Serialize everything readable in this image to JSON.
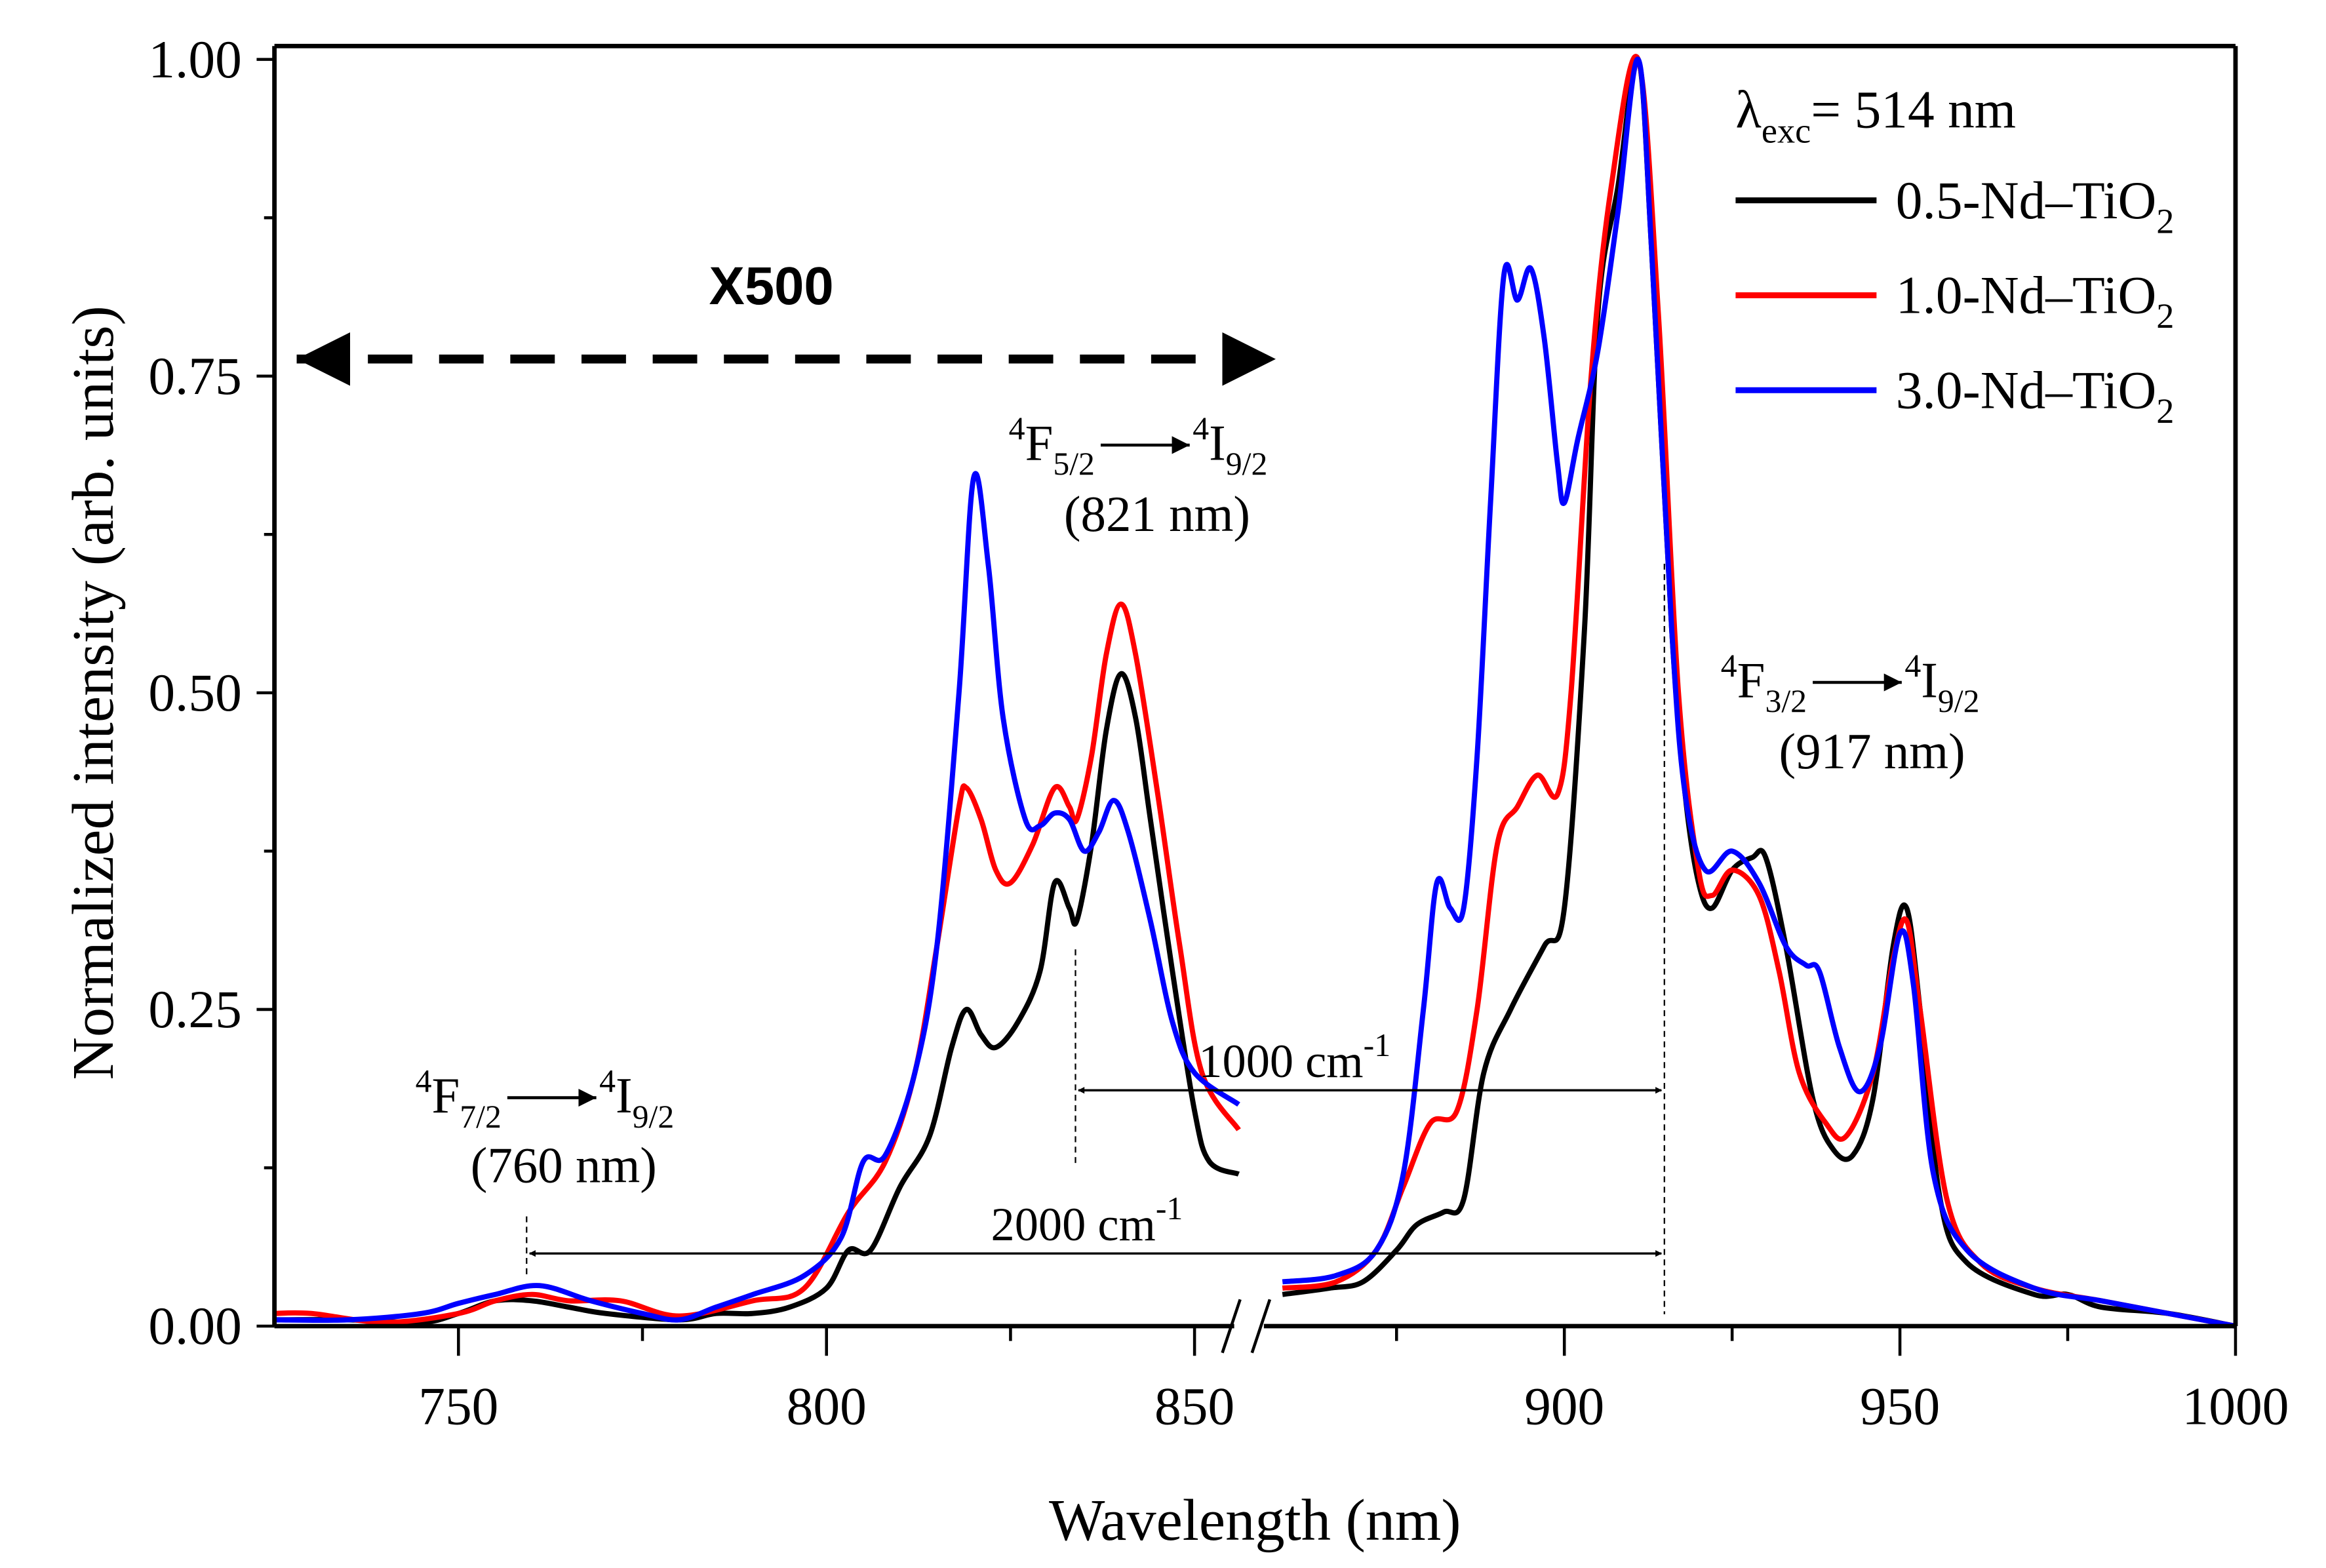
{
  "chart_data": {
    "type": "line",
    "xlabel": "Wavelength (nm)",
    "ylabel": "Normalized intensity (arb. units)",
    "xlim": [
      725,
      1000
    ],
    "x_break": [
      856,
      858
    ],
    "ylim": [
      0,
      1
    ],
    "xticks": [
      "750",
      "800",
      "850",
      "900",
      "950",
      "1000"
    ],
    "yticks": [
      "0.00",
      "0.25",
      "0.50",
      "0.75",
      "1.00"
    ],
    "legend": {
      "title_main": "λ",
      "title_sub": "exc",
      "title_rest": "= 514 nm",
      "placement": "top-right"
    },
    "series": [
      {
        "name": "0.5-Nd–TiO",
        "name_sub": "2",
        "color": "#000000",
        "left": [
          [
            725,
            0.005
          ],
          [
            735,
            0.005
          ],
          [
            745,
            0.003
          ],
          [
            750,
            0.01
          ],
          [
            755,
            0.02
          ],
          [
            760,
            0.02
          ],
          [
            765,
            0.015
          ],
          [
            770,
            0.01
          ],
          [
            780,
            0.005
          ],
          [
            785,
            0.01
          ],
          [
            790,
            0.01
          ],
          [
            795,
            0.015
          ],
          [
            800,
            0.03
          ],
          [
            803,
            0.06
          ],
          [
            806,
            0.06
          ],
          [
            810,
            0.11
          ],
          [
            814,
            0.15
          ],
          [
            817,
            0.22
          ],
          [
            819,
            0.25
          ],
          [
            821,
            0.23
          ],
          [
            823,
            0.22
          ],
          [
            826,
            0.24
          ],
          [
            829,
            0.28
          ],
          [
            831,
            0.35
          ],
          [
            833,
            0.33
          ],
          [
            834,
            0.32
          ],
          [
            836,
            0.38
          ],
          [
            838,
            0.47
          ],
          [
            840,
            0.515
          ],
          [
            842,
            0.48
          ],
          [
            844,
            0.4
          ],
          [
            847,
            0.28
          ],
          [
            850,
            0.17
          ],
          [
            852,
            0.13
          ],
          [
            856,
            0.12
          ]
        ],
        "right": [
          [
            858,
            0.025
          ],
          [
            865,
            0.03
          ],
          [
            870,
            0.035
          ],
          [
            875,
            0.06
          ],
          [
            878,
            0.08
          ],
          [
            882,
            0.09
          ],
          [
            885,
            0.1
          ],
          [
            888,
            0.2
          ],
          [
            892,
            0.25
          ],
          [
            897,
            0.3
          ],
          [
            900,
            0.33
          ],
          [
            903,
            0.55
          ],
          [
            905,
            0.8
          ],
          [
            908,
            0.9
          ],
          [
            911,
            1.0
          ],
          [
            913,
            0.85
          ],
          [
            916,
            0.55
          ],
          [
            918,
            0.42
          ],
          [
            920,
            0.35
          ],
          [
            922,
            0.33
          ],
          [
            925,
            0.36
          ],
          [
            928,
            0.37
          ],
          [
            930,
            0.37
          ],
          [
            933,
            0.3
          ],
          [
            937,
            0.18
          ],
          [
            940,
            0.14
          ],
          [
            943,
            0.135
          ],
          [
            946,
            0.18
          ],
          [
            949,
            0.3
          ],
          [
            951,
            0.33
          ],
          [
            953,
            0.25
          ],
          [
            956,
            0.1
          ],
          [
            960,
            0.05
          ],
          [
            970,
            0.025
          ],
          [
            975,
            0.025
          ],
          [
            980,
            0.015
          ],
          [
            990,
            0.01
          ],
          [
            1000,
            0.0
          ]
        ]
      },
      {
        "name": "1.0-Nd–TiO",
        "name_sub": "2",
        "color": "#ff0000",
        "left": [
          [
            725,
            0.01
          ],
          [
            730,
            0.01
          ],
          [
            740,
            0.003
          ],
          [
            750,
            0.01
          ],
          [
            755,
            0.02
          ],
          [
            760,
            0.025
          ],
          [
            765,
            0.02
          ],
          [
            772,
            0.02
          ],
          [
            780,
            0.008
          ],
          [
            790,
            0.02
          ],
          [
            797,
            0.03
          ],
          [
            803,
            0.09
          ],
          [
            808,
            0.13
          ],
          [
            812,
            0.2
          ],
          [
            815,
            0.3
          ],
          [
            818,
            0.41
          ],
          [
            819,
            0.425
          ],
          [
            821,
            0.4
          ],
          [
            823,
            0.36
          ],
          [
            825,
            0.35
          ],
          [
            828,
            0.38
          ],
          [
            831,
            0.425
          ],
          [
            833,
            0.41
          ],
          [
            834,
            0.4
          ],
          [
            836,
            0.45
          ],
          [
            838,
            0.53
          ],
          [
            840,
            0.57
          ],
          [
            842,
            0.53
          ],
          [
            845,
            0.42
          ],
          [
            848,
            0.3
          ],
          [
            851,
            0.2
          ],
          [
            856,
            0.155
          ]
        ],
        "right": [
          [
            858,
            0.03
          ],
          [
            866,
            0.035
          ],
          [
            872,
            0.06
          ],
          [
            876,
            0.11
          ],
          [
            880,
            0.16
          ],
          [
            884,
            0.17
          ],
          [
            887,
            0.25
          ],
          [
            890,
            0.38
          ],
          [
            893,
            0.41
          ],
          [
            896,
            0.435
          ],
          [
            899,
            0.42
          ],
          [
            901,
            0.5
          ],
          [
            904,
            0.75
          ],
          [
            907,
            0.9
          ],
          [
            911,
            1.0
          ],
          [
            914,
            0.8
          ],
          [
            917,
            0.5
          ],
          [
            920,
            0.36
          ],
          [
            922,
            0.34
          ],
          [
            925,
            0.36
          ],
          [
            929,
            0.34
          ],
          [
            932,
            0.28
          ],
          [
            935,
            0.2
          ],
          [
            939,
            0.16
          ],
          [
            942,
            0.15
          ],
          [
            946,
            0.2
          ],
          [
            949,
            0.29
          ],
          [
            951,
            0.32
          ],
          [
            953,
            0.25
          ],
          [
            957,
            0.1
          ],
          [
            962,
            0.05
          ],
          [
            970,
            0.03
          ],
          [
            980,
            0.02
          ],
          [
            990,
            0.01
          ],
          [
            1000,
            0.0
          ]
        ]
      },
      {
        "name": "3.0-Nd–TiO",
        "name_sub": "2",
        "color": "#0000ff",
        "left": [
          [
            725,
            0.005
          ],
          [
            735,
            0.005
          ],
          [
            745,
            0.01
          ],
          [
            750,
            0.018
          ],
          [
            755,
            0.025
          ],
          [
            761,
            0.032
          ],
          [
            768,
            0.02
          ],
          [
            775,
            0.01
          ],
          [
            780,
            0.005
          ],
          [
            785,
            0.015
          ],
          [
            790,
            0.025
          ],
          [
            797,
            0.04
          ],
          [
            802,
            0.07
          ],
          [
            805,
            0.13
          ],
          [
            808,
            0.135
          ],
          [
            812,
            0.2
          ],
          [
            815,
            0.3
          ],
          [
            818,
            0.5
          ],
          [
            820,
            0.67
          ],
          [
            822,
            0.6
          ],
          [
            824,
            0.48
          ],
          [
            827,
            0.4
          ],
          [
            829,
            0.395
          ],
          [
            831,
            0.405
          ],
          [
            833,
            0.4
          ],
          [
            835,
            0.375
          ],
          [
            837,
            0.39
          ],
          [
            839,
            0.415
          ],
          [
            841,
            0.39
          ],
          [
            844,
            0.32
          ],
          [
            847,
            0.24
          ],
          [
            850,
            0.2
          ],
          [
            856,
            0.175
          ]
        ],
        "right": [
          [
            858,
            0.035
          ],
          [
            866,
            0.04
          ],
          [
            872,
            0.06
          ],
          [
            876,
            0.12
          ],
          [
            879,
            0.25
          ],
          [
            881,
            0.35
          ],
          [
            883,
            0.33
          ],
          [
            885,
            0.33
          ],
          [
            887,
            0.45
          ],
          [
            889,
            0.65
          ],
          [
            891,
            0.83
          ],
          [
            893,
            0.81
          ],
          [
            895,
            0.835
          ],
          [
            897,
            0.78
          ],
          [
            899,
            0.68
          ],
          [
            900,
            0.65
          ],
          [
            902,
            0.7
          ],
          [
            905,
            0.77
          ],
          [
            908,
            0.88
          ],
          [
            911,
            1.0
          ],
          [
            913,
            0.85
          ],
          [
            916,
            0.55
          ],
          [
            918,
            0.42
          ],
          [
            921,
            0.36
          ],
          [
            925,
            0.375
          ],
          [
            929,
            0.35
          ],
          [
            933,
            0.3
          ],
          [
            936,
            0.285
          ],
          [
            938,
            0.28
          ],
          [
            941,
            0.22
          ],
          [
            944,
            0.185
          ],
          [
            947,
            0.22
          ],
          [
            950,
            0.31
          ],
          [
            952,
            0.27
          ],
          [
            955,
            0.12
          ],
          [
            960,
            0.06
          ],
          [
            970,
            0.03
          ],
          [
            980,
            0.02
          ],
          [
            990,
            0.01
          ],
          [
            1000,
            0.0
          ]
        ]
      }
    ],
    "annotations": {
      "scale_label": "X500",
      "t821": {
        "s1": "4",
        "a": "F",
        "s2": "5/2",
        "s3": "4",
        "b": "I",
        "s4": "9/2",
        "wl": "(821 nm)"
      },
      "t917": {
        "s1": "4",
        "a": "F",
        "s2": "3/2",
        "s3": "4",
        "b": "I",
        "s4": "9/2",
        "wl": "(917 nm)"
      },
      "t760": {
        "s1": "4",
        "a": "F",
        "s2": "7/2",
        "s3": "4",
        "b": "I",
        "s4": "9/2",
        "wl": "(760 nm)"
      },
      "shift1": {
        "v": "1000 cm",
        "e": "-1"
      },
      "shift2": {
        "v": "2000 cm",
        "e": "-1"
      }
    }
  }
}
